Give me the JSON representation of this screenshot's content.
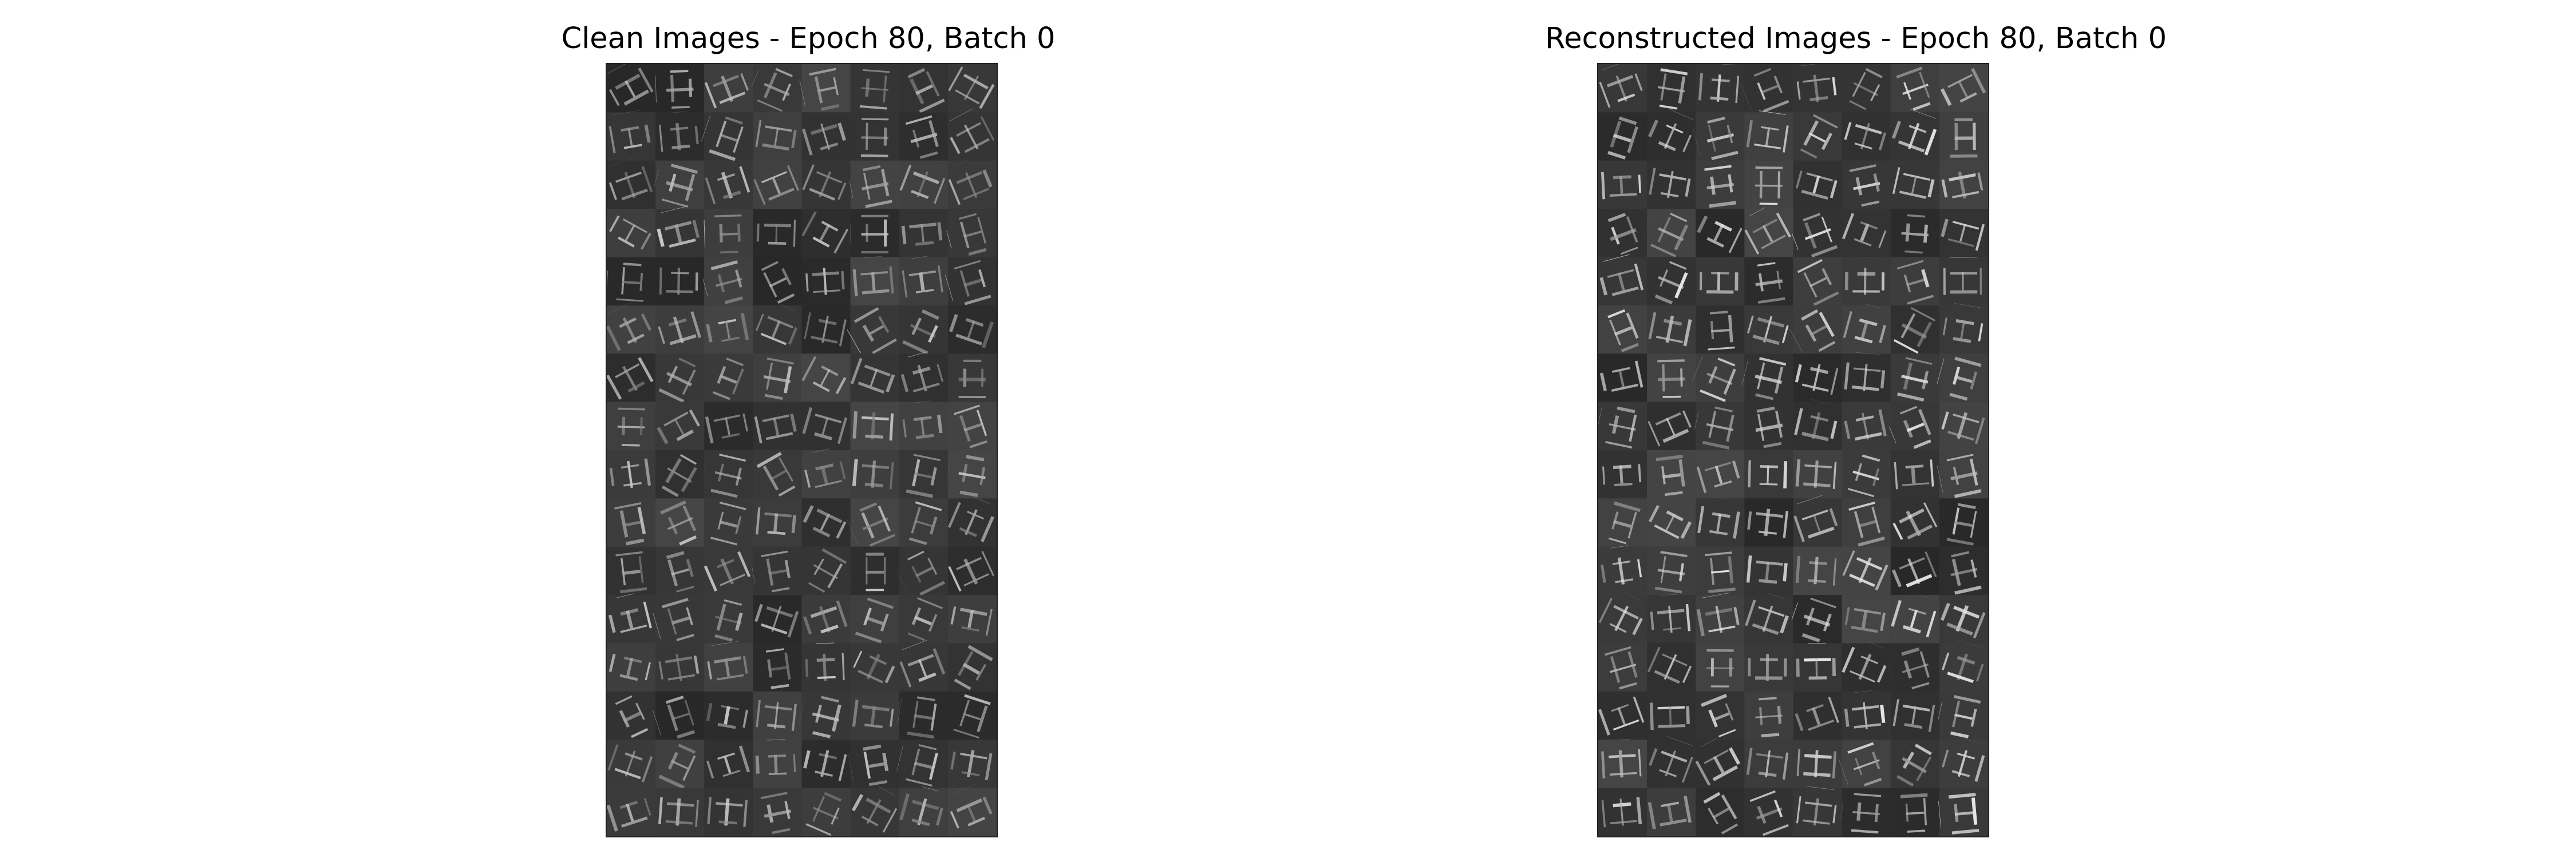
{
  "figure": {
    "panels": [
      {
        "title": "Clean Images - Epoch 80, Batch 0"
      },
      {
        "title": "Reconstructed Images - Epoch 80, Batch 0"
      }
    ]
  }
}
